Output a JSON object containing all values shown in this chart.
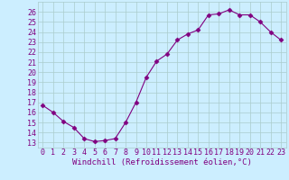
{
  "x": [
    0,
    1,
    2,
    3,
    4,
    5,
    6,
    7,
    8,
    9,
    10,
    11,
    12,
    13,
    14,
    15,
    16,
    17,
    18,
    19,
    20,
    21,
    22,
    23
  ],
  "y": [
    16.7,
    16.0,
    15.1,
    14.5,
    13.4,
    13.1,
    13.2,
    13.4,
    15.0,
    17.0,
    19.5,
    21.1,
    21.8,
    23.2,
    23.8,
    24.2,
    25.7,
    25.8,
    26.2,
    25.7,
    25.7,
    25.0,
    24.0,
    23.2
  ],
  "xlim": [
    -0.5,
    23.5
  ],
  "ylim": [
    12.5,
    27.0
  ],
  "yticks": [
    13,
    14,
    15,
    16,
    17,
    18,
    19,
    20,
    21,
    22,
    23,
    24,
    25,
    26
  ],
  "xticks": [
    0,
    1,
    2,
    3,
    4,
    5,
    6,
    7,
    8,
    9,
    10,
    11,
    12,
    13,
    14,
    15,
    16,
    17,
    18,
    19,
    20,
    21,
    22,
    23
  ],
  "xlabel": "Windchill (Refroidissement éolien,°C)",
  "line_color": "#800080",
  "marker": "D",
  "marker_size": 2.5,
  "bg_color": "#cceeff",
  "grid_color": "#aacccc",
  "font_color": "#800080",
  "label_fontsize": 6.5,
  "tick_fontsize": 6.0
}
